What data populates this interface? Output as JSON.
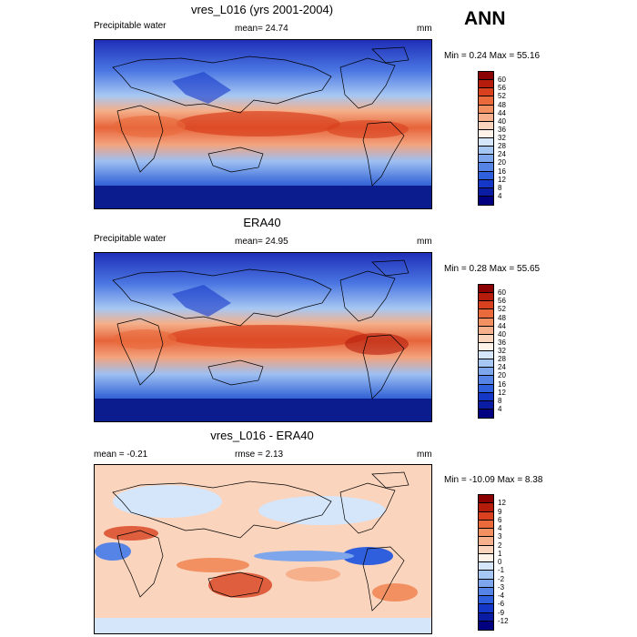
{
  "season": "ANN",
  "units": "mm",
  "panels": [
    {
      "title": "vres_L016 (yrs 2001-2004)",
      "field": "Precipitable water",
      "mean_text": "mean=  24.74",
      "minmax_text": "Min =   0.24 Max =  55.16"
    },
    {
      "title": "ERA40",
      "field": "Precipitable water",
      "mean_text": "mean=  24.95",
      "minmax_text": "Min =   0.28 Max =  55.65"
    },
    {
      "title": "vres_L016 - ERA40",
      "mean_text": "mean =  -0.21",
      "rmse_text": "rmse =   2.13",
      "minmax_text": "Min = -10.09 Max =   8.38"
    }
  ],
  "colorbars": {
    "absolute": {
      "labels": [
        "60",
        "56",
        "52",
        "48",
        "44",
        "40",
        "36",
        "32",
        "28",
        "24",
        "20",
        "16",
        "12",
        "8",
        "4"
      ],
      "colors": [
        "#8b0000",
        "#b51c0c",
        "#d8401e",
        "#ea6a3c",
        "#f29062",
        "#f6b08b",
        "#fad4bd",
        "#fff2e8",
        "#d5e6fb",
        "#a6c6f3",
        "#7ea6ec",
        "#5684e6",
        "#2f5fdc",
        "#1537c8",
        "#0b1ca4",
        "#000080"
      ]
    },
    "difference": {
      "labels": [
        "12",
        "9",
        "6",
        "4",
        "3",
        "2",
        "1",
        "0",
        "-1",
        "-2",
        "-3",
        "-4",
        "-6",
        "-9",
        "-12"
      ],
      "colors": [
        "#8b0000",
        "#b51c0c",
        "#d8401e",
        "#ea6a3c",
        "#f29062",
        "#f6b08b",
        "#fad4bd",
        "#fff2e8",
        "#d5e6fb",
        "#a6c6f3",
        "#7ea6ec",
        "#5684e6",
        "#2f5fdc",
        "#1537c8",
        "#0b1ca4",
        "#000080"
      ]
    }
  }
}
